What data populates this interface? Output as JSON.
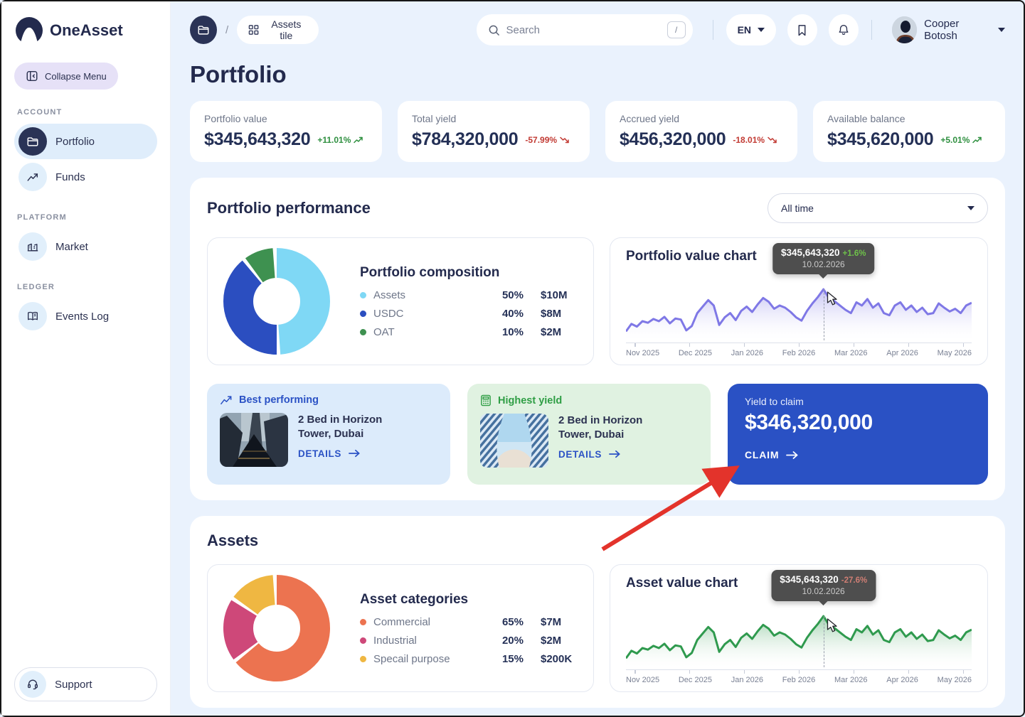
{
  "brand": {
    "name": "OneAsset"
  },
  "sidebar": {
    "collapse_label": "Collapse Menu",
    "sections": [
      {
        "label": "ACCOUNT",
        "items": [
          {
            "label": "Portfolio"
          },
          {
            "label": "Funds"
          }
        ]
      },
      {
        "label": "PLATFORM",
        "items": [
          {
            "label": "Market"
          }
        ]
      },
      {
        "label": "LEDGER",
        "items": [
          {
            "label": "Events Log"
          }
        ]
      }
    ],
    "support_label": "Support"
  },
  "topbar": {
    "breadcrumb_tile": "Assets tile",
    "search_placeholder": "Search",
    "search_shortcut": "/",
    "language": "EN",
    "user_name": "Cooper Botosh"
  },
  "page": {
    "title": "Portfolio"
  },
  "stats": [
    {
      "label": "Portfolio value",
      "value": "$345,643,320",
      "change": "+11.01%",
      "direction": "up"
    },
    {
      "label": "Total yield",
      "value": "$784,320,000",
      "change": "-57.99%",
      "direction": "down"
    },
    {
      "label": "Accrued yield",
      "value": "$456,320,000",
      "change": "-18.01%",
      "direction": "down"
    },
    {
      "label": "Available balance",
      "value": "$345,620,000",
      "change": "+5.01%",
      "direction": "up"
    }
  ],
  "performance": {
    "title": "Portfolio performance",
    "range_filter": "All time",
    "best_performing": {
      "badge": "Best performing",
      "title": "2 Bed in Horizon Tower, Dubai",
      "link": "DETAILS"
    },
    "highest_yield": {
      "badge": "Highest yield",
      "title": "2 Bed in Horizon Tower, Dubai",
      "link": "DETAILS"
    },
    "yield_to_claim": {
      "label": "Yield to claim",
      "value": "$346,320,000",
      "link": "CLAIM"
    }
  },
  "assets_section": {
    "title": "Assets"
  },
  "chart_data": [
    {
      "type": "pie",
      "title": "Portfolio composition",
      "segments": [
        {
          "label": "Assets",
          "pct": 50,
          "pct_label": "50%",
          "value": "$10M",
          "color": "#7FD8F5"
        },
        {
          "label": "USDC",
          "pct": 40,
          "pct_label": "40%",
          "value": "$8M",
          "color": "#2B4EC0"
        },
        {
          "label": "OAT",
          "pct": 10,
          "pct_label": "10%",
          "value": "$2M",
          "color": "#3E9150"
        }
      ]
    },
    {
      "type": "line",
      "title": "Portfolio value chart",
      "color": "#7F78E6",
      "x_labels": [
        "Nov 2025",
        "Dec 2025",
        "Jan 2026",
        "Feb 2026",
        "Mar 2026",
        "Apr 2026",
        "May 2026"
      ],
      "values": [
        10,
        24,
        19,
        29,
        26,
        33,
        29,
        37,
        25,
        34,
        32,
        12,
        20,
        44,
        56,
        68,
        58,
        22,
        36,
        44,
        31,
        48,
        56,
        46,
        60,
        72,
        65,
        52,
        58,
        54,
        46,
        36,
        30,
        48,
        62,
        74,
        88,
        72,
        66,
        58,
        50,
        44,
        64,
        58,
        70,
        54,
        62,
        44,
        40,
        58,
        64,
        50,
        58,
        46,
        54,
        42,
        44,
        62,
        54,
        47,
        52,
        44,
        58,
        63
      ],
      "ylim": [
        0,
        100
      ],
      "legend_position": "none",
      "grid": false,
      "tooltip": {
        "value": "$345,643,320",
        "change": "+1.6%",
        "direction": "up",
        "date": "10.02.2026"
      }
    },
    {
      "type": "pie",
      "title": "Asset categories",
      "segments": [
        {
          "label": "Commercial",
          "pct": 65,
          "pct_label": "65%",
          "value": "$7M",
          "color": "#EC7350"
        },
        {
          "label": "Industrial",
          "pct": 20,
          "pct_label": "20%",
          "value": "$2M",
          "color": "#CE4879"
        },
        {
          "label": "Specail purpose",
          "pct": 15,
          "pct_label": "15%",
          "value": "$200K",
          "color": "#EFB742"
        }
      ]
    },
    {
      "type": "line",
      "title": "Asset value chart",
      "color": "#2F9A4E",
      "x_labels": [
        "Nov 2025",
        "Dec 2025",
        "Jan 2026",
        "Feb 2026",
        "Mar 2026",
        "Apr 2026",
        "May 2026"
      ],
      "values": [
        10,
        24,
        19,
        29,
        26,
        33,
        29,
        37,
        25,
        34,
        32,
        12,
        20,
        44,
        56,
        68,
        58,
        22,
        36,
        44,
        31,
        48,
        56,
        46,
        60,
        72,
        65,
        52,
        58,
        54,
        46,
        36,
        30,
        48,
        62,
        74,
        88,
        72,
        66,
        58,
        50,
        44,
        64,
        58,
        70,
        54,
        62,
        44,
        40,
        58,
        64,
        50,
        58,
        46,
        54,
        42,
        44,
        62,
        54,
        47,
        52,
        44,
        58,
        63
      ],
      "ylim": [
        0,
        100
      ],
      "legend_position": "none",
      "grid": false,
      "tooltip": {
        "value": "$345,643,320",
        "change": "-27.6%",
        "direction": "down",
        "date": "10.02.2026"
      }
    }
  ]
}
